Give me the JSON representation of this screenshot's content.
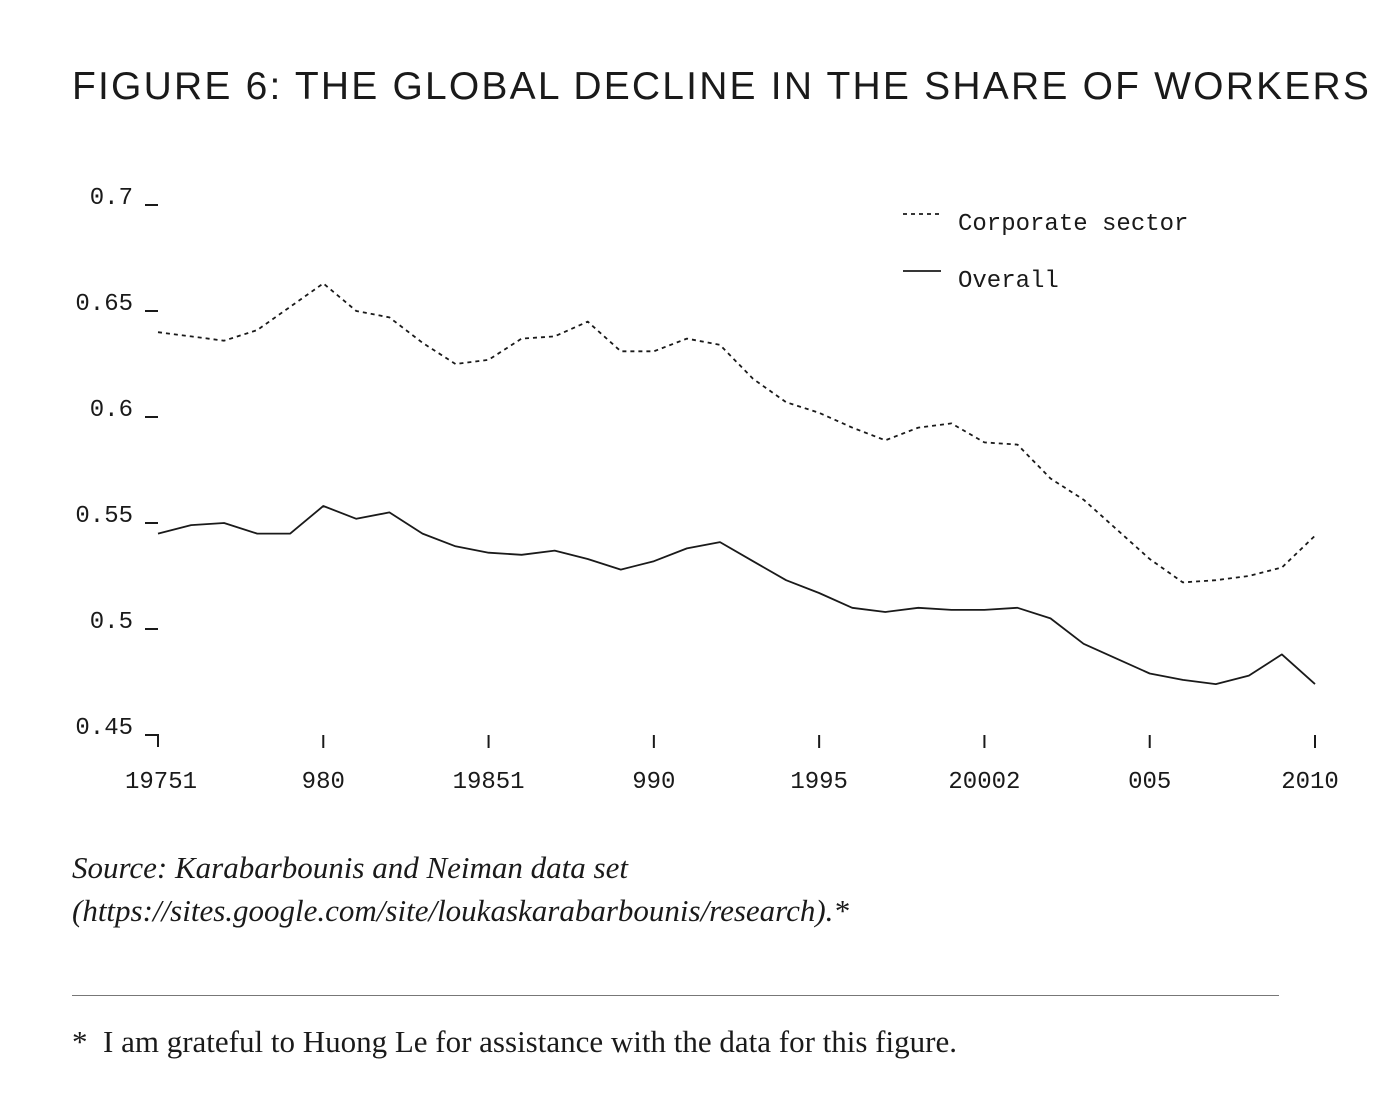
{
  "figure": {
    "title": "FIGURE 6: THE GLOBAL DECLINE IN THE SHARE OF WORKERS",
    "source_line1": "Source: Karabarbounis and Neiman data set",
    "source_line2": "(https://sites.google.com/site/loukaskarabarbounis/research).*",
    "footnote_marker": "*",
    "footnote_text": "I am grateful to Huong Le for assistance with the data for this figure."
  },
  "chart_data": {
    "type": "line",
    "title": "",
    "xlabel": "",
    "ylabel": "",
    "xlim": [
      1975,
      2010
    ],
    "ylim": [
      0.45,
      0.7
    ],
    "grid": false,
    "legend_placement": "top-right",
    "x_tick_values": [
      1975,
      1980,
      1985,
      1990,
      1995,
      2000,
      2005,
      2010
    ],
    "x_tick_labels": [
      "19751",
      "980",
      "19851",
      "990",
      "1995",
      "20002",
      "005",
      "2010"
    ],
    "y_ticks": [
      0.7,
      0.65,
      0.6,
      0.55,
      0.5,
      0.45
    ],
    "y_tick_labels": [
      "0.7",
      "0.65",
      "0.6",
      "0.55",
      "0.5",
      "0.45"
    ],
    "x": [
      1975,
      1976,
      1977,
      1978,
      1979,
      1980,
      1981,
      1982,
      1983,
      1984,
      1985,
      1986,
      1987,
      1988,
      1989,
      1990,
      1991,
      1992,
      1993,
      1994,
      1995,
      1996,
      1997,
      1998,
      1999,
      2000,
      2001,
      2002,
      2003,
      2004,
      2005,
      2006,
      2007,
      2008,
      2009,
      2010
    ],
    "series": [
      {
        "name": "Corporate sector",
        "style": "dashed",
        "values": [
          0.64,
          0.638,
          0.636,
          0.641,
          0.652,
          0.663,
          0.65,
          0.647,
          0.635,
          0.625,
          0.627,
          0.637,
          0.638,
          0.645,
          0.631,
          0.631,
          0.637,
          0.634,
          0.618,
          0.607,
          0.602,
          0.595,
          0.589,
          0.595,
          0.597,
          0.588,
          0.587,
          0.571,
          0.561,
          0.547,
          0.533,
          0.522,
          0.523,
          0.525,
          0.529,
          0.544
        ]
      },
      {
        "name": "Overall",
        "style": "solid",
        "values": [
          0.545,
          0.549,
          0.55,
          0.545,
          0.545,
          0.558,
          0.552,
          0.555,
          0.545,
          0.539,
          0.536,
          0.535,
          0.537,
          0.533,
          0.528,
          0.532,
          0.538,
          0.541,
          0.532,
          0.523,
          0.517,
          0.51,
          0.508,
          0.51,
          0.509,
          0.509,
          0.51,
          0.505,
          0.493,
          0.486,
          0.479,
          0.476,
          0.474,
          0.478,
          0.488,
          0.474
        ]
      }
    ]
  }
}
